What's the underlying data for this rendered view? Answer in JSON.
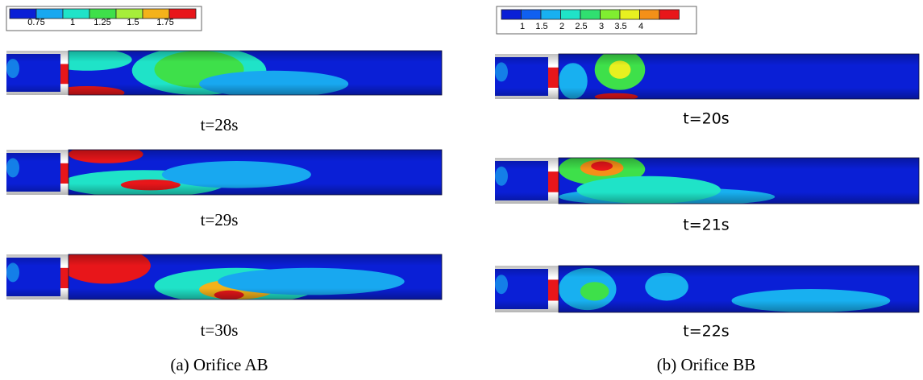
{
  "panels": [
    {
      "legend": {
        "labels": [
          "0.75",
          "1",
          "1.25",
          "1.5",
          "1.75"
        ]
      },
      "frames": [
        {
          "label": "t=28s"
        },
        {
          "label": "t=29s"
        },
        {
          "label": "t=30s"
        }
      ],
      "caption": "(a)  Orifice AB"
    },
    {
      "legend": {
        "labels": [
          "1",
          "1.5",
          "2",
          "2.5",
          "3",
          "3.5",
          "4"
        ]
      },
      "frames": [
        {
          "label": "t=20s"
        },
        {
          "label": "t=21s"
        },
        {
          "label": "t=22s"
        }
      ],
      "caption": "(b)  Orifice BB"
    }
  ]
}
